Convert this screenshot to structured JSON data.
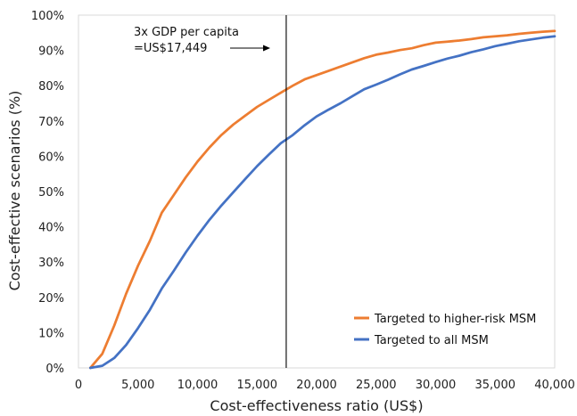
{
  "chart_data": {
    "type": "line",
    "title": "",
    "xlabel": "Cost-effectiveness ratio (US$)",
    "ylabel": "Cost-effective scenarios (%)",
    "xlim": [
      0,
      40000
    ],
    "ylim": [
      0,
      100
    ],
    "x_ticks": [
      0,
      5000,
      10000,
      15000,
      20000,
      25000,
      30000,
      35000,
      40000
    ],
    "x_tick_labels": [
      "0",
      "5,000",
      "10,000",
      "15,000",
      "20,000",
      "25,000",
      "30,000",
      "35,000",
      "40,000"
    ],
    "y_ticks": [
      0,
      10,
      20,
      30,
      40,
      50,
      60,
      70,
      80,
      90,
      100
    ],
    "y_tick_labels": [
      "0%",
      "10%",
      "20%",
      "30%",
      "40%",
      "50%",
      "60%",
      "70%",
      "80%",
      "90%",
      "100%"
    ],
    "grid": false,
    "legend_position": "bottom-right",
    "reference_line": {
      "x": 17449,
      "label_lines": [
        "3x GDP per capita",
        "=US$17,449"
      ]
    },
    "series": [
      {
        "name": "Targeted to higher-risk MSM",
        "color": "#ED7D31",
        "points": [
          [
            1000,
            0
          ],
          [
            2000,
            4
          ],
          [
            3000,
            12
          ],
          [
            4000,
            21
          ],
          [
            5000,
            29
          ],
          [
            6000,
            36
          ],
          [
            7000,
            44
          ],
          [
            8000,
            49
          ],
          [
            9000,
            54
          ],
          [
            10000,
            58.5
          ],
          [
            11000,
            62.5
          ],
          [
            12000,
            66
          ],
          [
            13000,
            69
          ],
          [
            14000,
            71.5
          ],
          [
            15000,
            74
          ],
          [
            16000,
            76
          ],
          [
            17000,
            78
          ],
          [
            18000,
            80
          ],
          [
            19000,
            81.8
          ],
          [
            20000,
            83
          ],
          [
            21000,
            84.2
          ],
          [
            22000,
            85.4
          ],
          [
            23000,
            86.6
          ],
          [
            24000,
            87.8
          ],
          [
            25000,
            88.8
          ],
          [
            26000,
            89.4
          ],
          [
            27000,
            90.1
          ],
          [
            28000,
            90.6
          ],
          [
            29000,
            91.5
          ],
          [
            30000,
            92.2
          ],
          [
            31000,
            92.5
          ],
          [
            32000,
            92.8
          ],
          [
            33000,
            93.2
          ],
          [
            34000,
            93.7
          ],
          [
            35000,
            94
          ],
          [
            36000,
            94.3
          ],
          [
            37000,
            94.7
          ],
          [
            38000,
            95
          ],
          [
            39000,
            95.3
          ],
          [
            40000,
            95.5
          ]
        ]
      },
      {
        "name": "Targeted to all MSM",
        "color": "#4472C4",
        "points": [
          [
            1000,
            0
          ],
          [
            2000,
            0.6
          ],
          [
            3000,
            2.8
          ],
          [
            4000,
            6.5
          ],
          [
            5000,
            11.3
          ],
          [
            6000,
            16.5
          ],
          [
            7000,
            22.5
          ],
          [
            8000,
            27.5
          ],
          [
            9000,
            32.7
          ],
          [
            10000,
            37.5
          ],
          [
            11000,
            42
          ],
          [
            12000,
            46
          ],
          [
            13000,
            49.8
          ],
          [
            14000,
            53.5
          ],
          [
            15000,
            57.2
          ],
          [
            16000,
            60.5
          ],
          [
            17000,
            63.7
          ],
          [
            18000,
            66
          ],
          [
            19000,
            68.8
          ],
          [
            20000,
            71.3
          ],
          [
            21000,
            73.2
          ],
          [
            22000,
            75
          ],
          [
            23000,
            77
          ],
          [
            24000,
            79
          ],
          [
            25000,
            80.3
          ],
          [
            26000,
            81.7
          ],
          [
            27000,
            83.2
          ],
          [
            28000,
            84.6
          ],
          [
            29000,
            85.6
          ],
          [
            30000,
            86.7
          ],
          [
            31000,
            87.7
          ],
          [
            32000,
            88.5
          ],
          [
            33000,
            89.5
          ],
          [
            34000,
            90.3
          ],
          [
            35000,
            91.2
          ],
          [
            36000,
            91.9
          ],
          [
            37000,
            92.6
          ],
          [
            38000,
            93.1
          ],
          [
            39000,
            93.6
          ],
          [
            40000,
            94
          ]
        ]
      }
    ]
  }
}
